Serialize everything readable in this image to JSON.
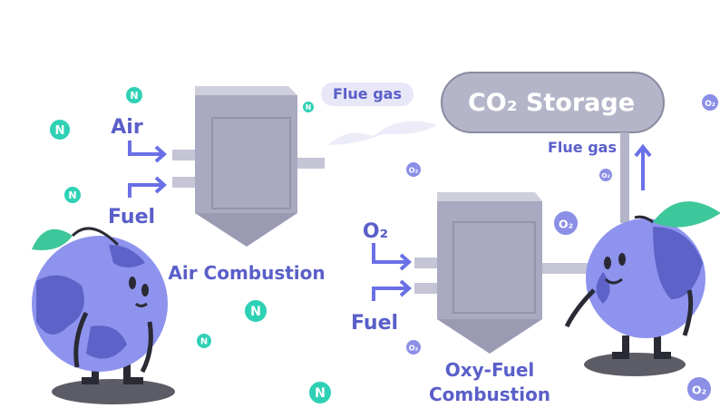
{
  "air_combustion": {
    "inputs": [
      "Air",
      "Fuel"
    ],
    "label": "Air Combustion",
    "output": "Flue gas"
  },
  "storage": {
    "label": "CO₂ Storage"
  },
  "oxy_fuel_combustion": {
    "inputs": [
      "O₂",
      "Fuel"
    ],
    "label": [
      "Oxy-Fuel",
      "Combustion"
    ],
    "output": "Flue gas"
  },
  "molecules": [
    "N",
    "N",
    "N",
    "N",
    "N",
    "N",
    "N",
    "O₂",
    "O₂",
    "O₂",
    "O₂",
    "O₂",
    "O₂"
  ]
}
